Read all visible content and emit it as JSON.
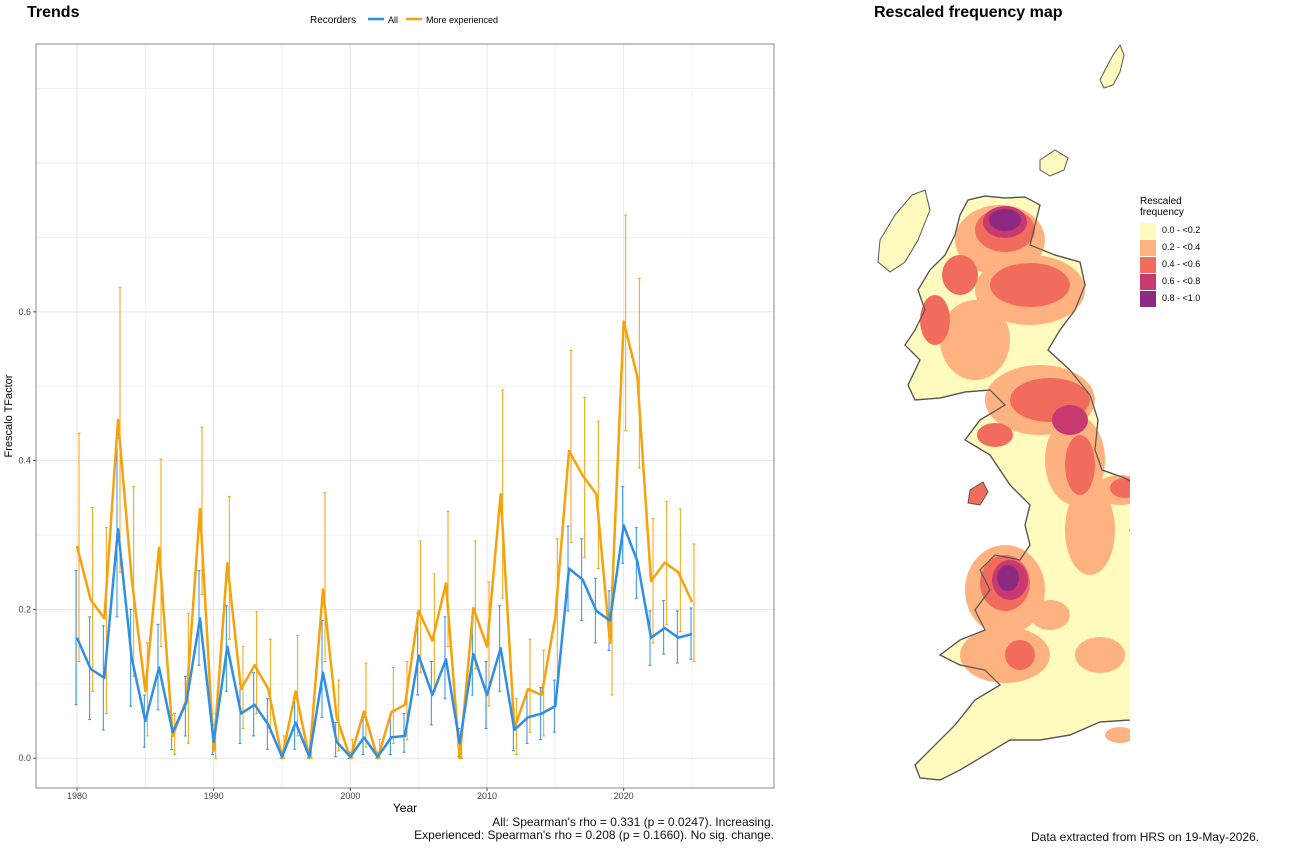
{
  "trends": {
    "title": "Trends",
    "footer_all": "All: Spearman's rho = 0.331 (p = 0.0247). Increasing.",
    "footer_exp": "Experienced: Spearman's rho = 0.208 (p = 0.1660). No sig. change."
  },
  "map": {
    "title": "Rescaled frequency map",
    "footer": "Data extracted from HRS on 19-May-2026.",
    "legend_title": [
      "Rescaled",
      "frequency"
    ],
    "legend": [
      {
        "label": "0.0 - <0.2",
        "color": "#FFFBBE"
      },
      {
        "label": "0.2 - <0.4",
        "color": "#FDB27F"
      },
      {
        "label": "0.4 - <0.6",
        "color": "#F26C5E"
      },
      {
        "label": "0.6 - <0.8",
        "color": "#C7396F"
      },
      {
        "label": "0.8 - <1.0",
        "color": "#8B2A80"
      }
    ]
  },
  "chart_data": {
    "type": "line",
    "xlabel": "Year",
    "ylabel": "Frescalo TFactor",
    "xlim": [
      1977,
      2031
    ],
    "ylim": [
      -0.04,
      0.96
    ],
    "xticks": [
      1980,
      1990,
      2000,
      2010,
      2020
    ],
    "yticks": [
      0.0,
      0.2,
      0.4,
      0.6
    ],
    "grid": true,
    "legend_title": "Recorders",
    "legend_position": "top",
    "x": [
      1980,
      1981,
      1982,
      1983,
      1984,
      1985,
      1986,
      1987,
      1988,
      1989,
      1990,
      1991,
      1992,
      1993,
      1994,
      1995,
      1996,
      1997,
      1998,
      1999,
      2000,
      2001,
      2002,
      2003,
      2004,
      2005,
      2006,
      2007,
      2008,
      2009,
      2010,
      2011,
      2012,
      2013,
      2014,
      2015,
      2016,
      2017,
      2018,
      2019,
      2020,
      2021,
      2022,
      2023,
      2024,
      2025
    ],
    "series": [
      {
        "name": "All",
        "color": "#2F8FE6",
        "values": [
          0.162,
          0.12,
          0.108,
          0.308,
          0.135,
          0.05,
          0.122,
          0.035,
          0.075,
          0.188,
          0.022,
          0.15,
          0.06,
          0.072,
          0.045,
          0.002,
          0.048,
          0.002,
          0.115,
          0.022,
          0.002,
          0.028,
          0.002,
          0.028,
          0.03,
          0.138,
          0.085,
          0.133,
          0.02,
          0.14,
          0.085,
          0.148,
          0.038,
          0.055,
          0.06,
          0.07,
          0.255,
          0.24,
          0.198,
          0.185,
          0.313,
          0.265,
          0.162,
          0.175,
          0.162,
          0.167
        ],
        "lower": [
          0.072,
          0.052,
          0.038,
          0.19,
          0.07,
          0.015,
          0.065,
          0.012,
          0.03,
          0.125,
          0.005,
          0.09,
          0.02,
          0.03,
          0.012,
          0.0,
          0.012,
          0.0,
          0.055,
          0.002,
          0.0,
          0.005,
          0.0,
          0.005,
          0.008,
          0.085,
          0.045,
          0.08,
          0.002,
          0.085,
          0.04,
          0.09,
          0.01,
          0.02,
          0.025,
          0.035,
          0.198,
          0.185,
          0.155,
          0.145,
          0.262,
          0.215,
          0.125,
          0.14,
          0.128,
          0.133
        ],
        "upper": [
          0.252,
          0.19,
          0.178,
          0.43,
          0.2,
          0.085,
          0.18,
          0.058,
          0.11,
          0.252,
          0.045,
          0.205,
          0.1,
          0.115,
          0.08,
          0.01,
          0.08,
          0.01,
          0.185,
          0.048,
          0.008,
          0.055,
          0.008,
          0.058,
          0.06,
          0.195,
          0.13,
          0.19,
          0.04,
          0.19,
          0.13,
          0.205,
          0.065,
          0.09,
          0.095,
          0.105,
          0.312,
          0.295,
          0.242,
          0.225,
          0.365,
          0.31,
          0.198,
          0.212,
          0.198,
          0.202
        ]
      },
      {
        "name": "More experienced",
        "color": "#F5A20C",
        "values": [
          0.285,
          0.213,
          0.188,
          0.455,
          0.242,
          0.09,
          0.283,
          0.03,
          0.078,
          0.335,
          0.01,
          0.262,
          0.093,
          0.125,
          0.093,
          0.0,
          0.09,
          0.0,
          0.227,
          0.055,
          0.0,
          0.063,
          0.0,
          0.062,
          0.072,
          0.198,
          0.158,
          0.235,
          0.0,
          0.202,
          0.15,
          0.355,
          0.04,
          0.093,
          0.085,
          0.19,
          0.413,
          0.38,
          0.355,
          0.155,
          0.587,
          0.513,
          0.238,
          0.263,
          0.25,
          0.21
        ],
        "lower": [
          0.13,
          0.09,
          0.06,
          0.25,
          0.11,
          0.03,
          0.15,
          0.005,
          0.02,
          0.22,
          0.0,
          0.16,
          0.04,
          0.06,
          0.035,
          0.0,
          0.03,
          0.0,
          0.13,
          0.01,
          0.0,
          0.015,
          0.0,
          0.02,
          0.025,
          0.115,
          0.09,
          0.15,
          0.0,
          0.12,
          0.07,
          0.215,
          0.005,
          0.035,
          0.03,
          0.1,
          0.29,
          0.27,
          0.255,
          0.085,
          0.44,
          0.39,
          0.155,
          0.18,
          0.17,
          0.13
        ],
        "upper": [
          0.437,
          0.337,
          0.31,
          0.633,
          0.365,
          0.155,
          0.402,
          0.06,
          0.195,
          0.445,
          0.06,
          0.352,
          0.15,
          0.197,
          0.16,
          0.03,
          0.165,
          0.03,
          0.357,
          0.105,
          0.025,
          0.128,
          0.025,
          0.122,
          0.13,
          0.292,
          0.248,
          0.332,
          0.03,
          0.292,
          0.237,
          0.495,
          0.08,
          0.16,
          0.145,
          0.295,
          0.548,
          0.485,
          0.453,
          0.23,
          0.73,
          0.645,
          0.322,
          0.345,
          0.335,
          0.288
        ]
      }
    ]
  }
}
